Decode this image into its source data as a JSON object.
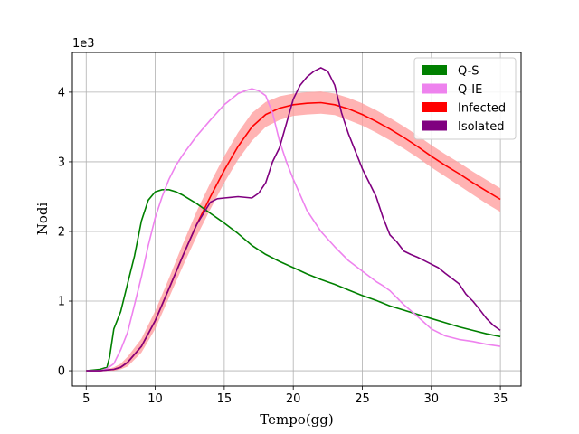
{
  "chart_data": {
    "type": "line",
    "title": "",
    "xlabel": "Tempo(gg)",
    "ylabel": "Nodi",
    "y_offset_label": "1e3",
    "xlim": [
      4,
      36.5
    ],
    "ylim": [
      -0.22,
      4.57
    ],
    "x_ticks": [
      5,
      10,
      15,
      20,
      25,
      30,
      35
    ],
    "y_ticks": [
      0,
      1,
      2,
      3,
      4
    ],
    "grid": true,
    "legend_position": "top-right",
    "series": [
      {
        "name": "Q-S",
        "color": "#008000",
        "x": [
          5,
          6,
          6.5,
          6.7,
          7,
          7.5,
          8,
          8.5,
          9,
          9.5,
          10,
          10.5,
          11,
          11.5,
          12,
          13,
          14,
          15,
          16,
          17,
          18,
          19,
          20,
          21,
          22,
          23,
          24,
          25,
          26,
          27,
          28,
          29,
          30,
          31,
          32,
          33,
          34,
          35
        ],
        "values": [
          0,
          0.02,
          0.05,
          0.2,
          0.6,
          0.85,
          1.25,
          1.65,
          2.15,
          2.45,
          2.57,
          2.6,
          2.6,
          2.57,
          2.52,
          2.4,
          2.26,
          2.12,
          1.97,
          1.8,
          1.67,
          1.57,
          1.48,
          1.39,
          1.31,
          1.24,
          1.16,
          1.08,
          1.01,
          0.93,
          0.87,
          0.81,
          0.75,
          0.69,
          0.63,
          0.58,
          0.53,
          0.49
        ]
      },
      {
        "name": "Q-IE",
        "color": "#ee82ee",
        "x": [
          5,
          6,
          6.5,
          7,
          7.5,
          8,
          8.5,
          9,
          9.5,
          10,
          10.5,
          11,
          11.5,
          12,
          13,
          14,
          15,
          16,
          16.5,
          17,
          17.5,
          18,
          18.5,
          19,
          19.5,
          20,
          21,
          22,
          23,
          24,
          25,
          26,
          26.5,
          27,
          27.5,
          28,
          29,
          30,
          31,
          32,
          33,
          34,
          35
        ],
        "values": [
          0,
          0,
          0.03,
          0.1,
          0.3,
          0.55,
          0.95,
          1.35,
          1.8,
          2.2,
          2.5,
          2.75,
          2.95,
          3.1,
          3.37,
          3.6,
          3.82,
          3.98,
          4.02,
          4.05,
          4.02,
          3.95,
          3.7,
          3.3,
          3.0,
          2.75,
          2.3,
          2.0,
          1.78,
          1.58,
          1.43,
          1.28,
          1.22,
          1.15,
          1.05,
          0.95,
          0.78,
          0.6,
          0.5,
          0.45,
          0.42,
          0.38,
          0.35
        ]
      },
      {
        "name": "Infected",
        "color": "#ff0000",
        "band_color": "#ff9999",
        "x": [
          5,
          6,
          7,
          7.5,
          8,
          9,
          10,
          11,
          12,
          13,
          14,
          15,
          16,
          17,
          18,
          19,
          20,
          21,
          22,
          23,
          24,
          25,
          26,
          27,
          28,
          29,
          30,
          31,
          32,
          33,
          34,
          35
        ],
        "values": [
          0,
          0,
          0.02,
          0.05,
          0.12,
          0.35,
          0.72,
          1.18,
          1.65,
          2.1,
          2.5,
          2.88,
          3.22,
          3.5,
          3.68,
          3.77,
          3.82,
          3.84,
          3.85,
          3.82,
          3.76,
          3.68,
          3.58,
          3.47,
          3.35,
          3.22,
          3.08,
          2.95,
          2.83,
          2.7,
          2.58,
          2.46
        ],
        "lower": [
          0,
          0,
          0,
          0.02,
          0.06,
          0.26,
          0.6,
          1.05,
          1.5,
          1.93,
          2.32,
          2.7,
          3.03,
          3.3,
          3.5,
          3.6,
          3.66,
          3.68,
          3.69,
          3.67,
          3.6,
          3.52,
          3.42,
          3.31,
          3.19,
          3.06,
          2.92,
          2.79,
          2.66,
          2.53,
          2.4,
          2.28
        ],
        "upper": [
          0,
          0,
          0.05,
          0.1,
          0.2,
          0.46,
          0.86,
          1.33,
          1.82,
          2.29,
          2.7,
          3.08,
          3.42,
          3.7,
          3.86,
          3.94,
          3.98,
          4.0,
          4.01,
          3.98,
          3.92,
          3.84,
          3.74,
          3.63,
          3.51,
          3.38,
          3.24,
          3.11,
          2.99,
          2.86,
          2.74,
          2.62
        ]
      },
      {
        "name": "Isolated",
        "color": "#800080",
        "x": [
          5,
          6,
          7,
          7.5,
          8,
          9,
          10,
          11,
          12,
          13,
          14,
          14.5,
          15,
          16,
          17,
          17.5,
          18,
          18.5,
          19,
          19.5,
          20,
          20.5,
          21,
          21.5,
          22,
          22.5,
          23,
          23.5,
          24,
          24.5,
          25,
          26,
          26.5,
          27,
          27.5,
          28,
          28.5,
          29,
          29.5,
          30,
          30.5,
          31,
          32,
          32.5,
          33,
          33.5,
          34,
          34.5,
          35
        ],
        "values": [
          0,
          0,
          0.02,
          0.05,
          0.12,
          0.35,
          0.72,
          1.18,
          1.65,
          2.1,
          2.42,
          2.47,
          2.48,
          2.5,
          2.48,
          2.55,
          2.7,
          3.0,
          3.2,
          3.55,
          3.9,
          4.1,
          4.22,
          4.3,
          4.35,
          4.3,
          4.1,
          3.7,
          3.4,
          3.15,
          2.9,
          2.5,
          2.2,
          1.95,
          1.85,
          1.72,
          1.67,
          1.63,
          1.58,
          1.53,
          1.48,
          1.4,
          1.25,
          1.1,
          1.0,
          0.88,
          0.75,
          0.65,
          0.58
        ]
      }
    ]
  }
}
